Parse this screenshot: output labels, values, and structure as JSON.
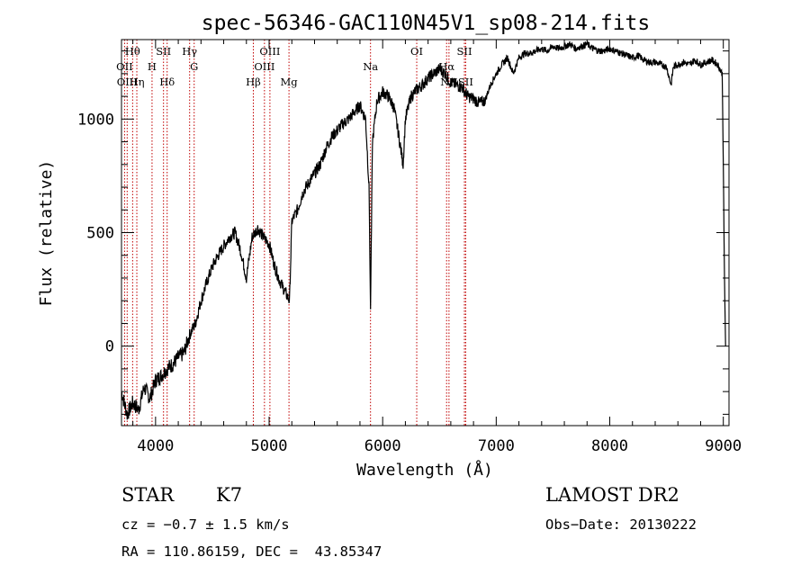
{
  "chart_data": {
    "type": "line",
    "title": "spec-56346-GAC110N45V1_sp08-214.fits",
    "xlabel": "Wavelength (Å)",
    "ylabel": "Flux (relative)",
    "xlim": [
      3700,
      9050
    ],
    "ylim": [
      -350,
      1350
    ],
    "x_ticks": [
      4000,
      5000,
      6000,
      7000,
      8000,
      9000
    ],
    "y_ticks": [
      0,
      500,
      1000
    ],
    "x_tick_labels": [
      "4000",
      "5000",
      "6000",
      "7000",
      "8000",
      "9000"
    ],
    "y_tick_labels": [
      "0",
      "500",
      "1000"
    ],
    "grid": false,
    "spectrum": {
      "x": [
        3700,
        3750,
        3800,
        3850,
        3900,
        3950,
        4000,
        4050,
        4100,
        4150,
        4200,
        4250,
        4300,
        4350,
        4400,
        4450,
        4500,
        4550,
        4600,
        4650,
        4700,
        4750,
        4800,
        4850,
        4900,
        4950,
        5000,
        5050,
        5100,
        5150,
        5180,
        5200,
        5250,
        5300,
        5350,
        5400,
        5450,
        5500,
        5550,
        5600,
        5650,
        5700,
        5750,
        5800,
        5850,
        5880,
        5893,
        5910,
        5950,
        6000,
        6050,
        6100,
        6150,
        6180,
        6200,
        6250,
        6300,
        6350,
        6400,
        6450,
        6500,
        6550,
        6600,
        6650,
        6700,
        6750,
        6800,
        6850,
        6900,
        6950,
        7000,
        7050,
        7100,
        7150,
        7200,
        7250,
        7300,
        7350,
        7400,
        7450,
        7500,
        7550,
        7600,
        7650,
        7700,
        7750,
        7800,
        7850,
        7900,
        7950,
        8000,
        8050,
        8100,
        8150,
        8200,
        8250,
        8300,
        8350,
        8400,
        8450,
        8500,
        8540,
        8560,
        8600,
        8650,
        8700,
        8750,
        8800,
        8850,
        8900,
        8950,
        8990,
        9000,
        9010,
        9020
      ],
      "y": [
        -200,
        -300,
        -250,
        -280,
        -180,
        -230,
        -150,
        -130,
        -100,
        -80,
        -50,
        -30,
        50,
        100,
        200,
        280,
        350,
        400,
        440,
        480,
        500,
        420,
        300,
        480,
        520,
        480,
        450,
        350,
        280,
        230,
        200,
        550,
        600,
        680,
        720,
        760,
        800,
        870,
        920,
        950,
        980,
        1000,
        1030,
        1060,
        1000,
        700,
        150,
        900,
        1080,
        1120,
        1100,
        1050,
        900,
        800,
        1000,
        1100,
        1130,
        1150,
        1180,
        1200,
        1220,
        1200,
        1160,
        1150,
        1140,
        1100,
        1090,
        1070,
        1080,
        1150,
        1200,
        1240,
        1270,
        1200,
        1270,
        1290,
        1290,
        1300,
        1310,
        1300,
        1320,
        1310,
        1320,
        1330,
        1310,
        1320,
        1330,
        1310,
        1300,
        1300,
        1310,
        1300,
        1290,
        1280,
        1270,
        1280,
        1260,
        1250,
        1250,
        1240,
        1230,
        1150,
        1230,
        1240,
        1250,
        1240,
        1260,
        1240,
        1250,
        1260,
        1240,
        1200,
        800,
        300,
        0
      ]
    },
    "line_markers": [
      {
        "label": "Hθ",
        "x": 3798,
        "row": 1
      },
      {
        "label": "OII",
        "x": 3727,
        "row": 2
      },
      {
        "label": "OIII",
        "x": 3750,
        "row": 3
      },
      {
        "label": "Hη",
        "x": 3835,
        "row": 3
      },
      {
        "label": "H",
        "x": 3969,
        "row": 2
      },
      {
        "label": "SII",
        "x": 4070,
        "row": 1
      },
      {
        "label": "Hδ",
        "x": 4102,
        "row": 3
      },
      {
        "label": "Hγ",
        "x": 4300,
        "row": 1
      },
      {
        "label": "G",
        "x": 4340,
        "row": 2
      },
      {
        "label": "Hβ",
        "x": 4861,
        "row": 3
      },
      {
        "label": "OIII",
        "x": 4959,
        "row": 2
      },
      {
        "label": "OIII",
        "x": 5007,
        "row": 1
      },
      {
        "label": "Mg",
        "x": 5175,
        "row": 3
      },
      {
        "label": "Na",
        "x": 5893,
        "row": 2
      },
      {
        "label": "OI",
        "x": 6300,
        "row": 1
      },
      {
        "label": "Hα",
        "x": 6563,
        "row": 2
      },
      {
        "label": "NII",
        "x": 6584,
        "row": 3
      },
      {
        "label": "SII",
        "x": 6720,
        "row": 1
      },
      {
        "label": "SII",
        "x": 6731,
        "row": 3
      }
    ]
  },
  "info": {
    "object_class": "STAR",
    "subclass": "K7",
    "release": "LAMOST DR2",
    "redshift": "cz = −0.7 ± 1.5 km/s",
    "obs_date": "Obs−Date: 20130222",
    "coords": "RA = 110.86159, DEC =  43.85347"
  },
  "colors": {
    "spectrum": "#000000",
    "markers": "#c00000",
    "axes": "#000000"
  }
}
